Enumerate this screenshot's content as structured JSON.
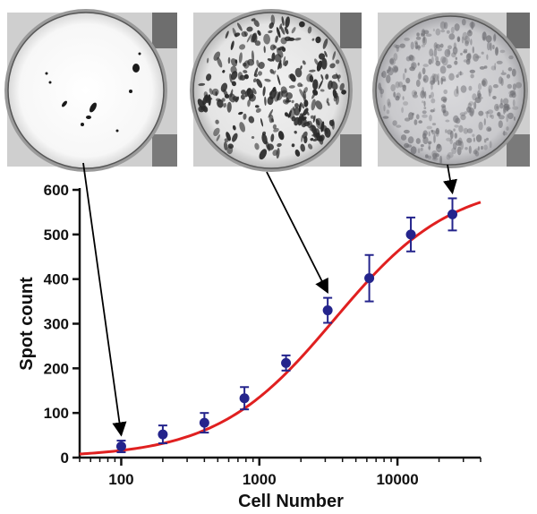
{
  "chart_data": {
    "type": "scatter",
    "xlabel": "Cell Number",
    "ylabel": "Spot count",
    "x_scale": "log",
    "xlim": [
      50,
      40000
    ],
    "ylim": [
      0,
      600
    ],
    "x_ticks": [
      100,
      1000,
      10000
    ],
    "x_tick_labels": [
      "100",
      "1000",
      "10000"
    ],
    "y_ticks": [
      0,
      100,
      200,
      300,
      400,
      500,
      600
    ],
    "y_tick_labels": [
      "0",
      "100",
      "200",
      "300",
      "400",
      "500",
      "600"
    ],
    "grid": false,
    "series": [
      {
        "x": [
          100,
          200,
          400,
          780,
          1560,
          3125,
          6250,
          12500,
          25000
        ],
        "y": [
          25,
          52,
          78,
          133,
          212,
          330,
          402,
          500,
          545
        ],
        "error": [
          13,
          20,
          22,
          25,
          17,
          28,
          52,
          38,
          36
        ],
        "color": "#24248c"
      }
    ],
    "fit_curve": {
      "type": "sigmoidal",
      "color": "#e02020",
      "bottom": 0,
      "top": 620,
      "ec50": 3500,
      "hill": 1.02
    }
  },
  "insets": {
    "wells": [
      "sparse-spots",
      "dense-spots",
      "confluent-spots"
    ],
    "arrow_targets_x": [
      100,
      3125,
      25000
    ]
  }
}
